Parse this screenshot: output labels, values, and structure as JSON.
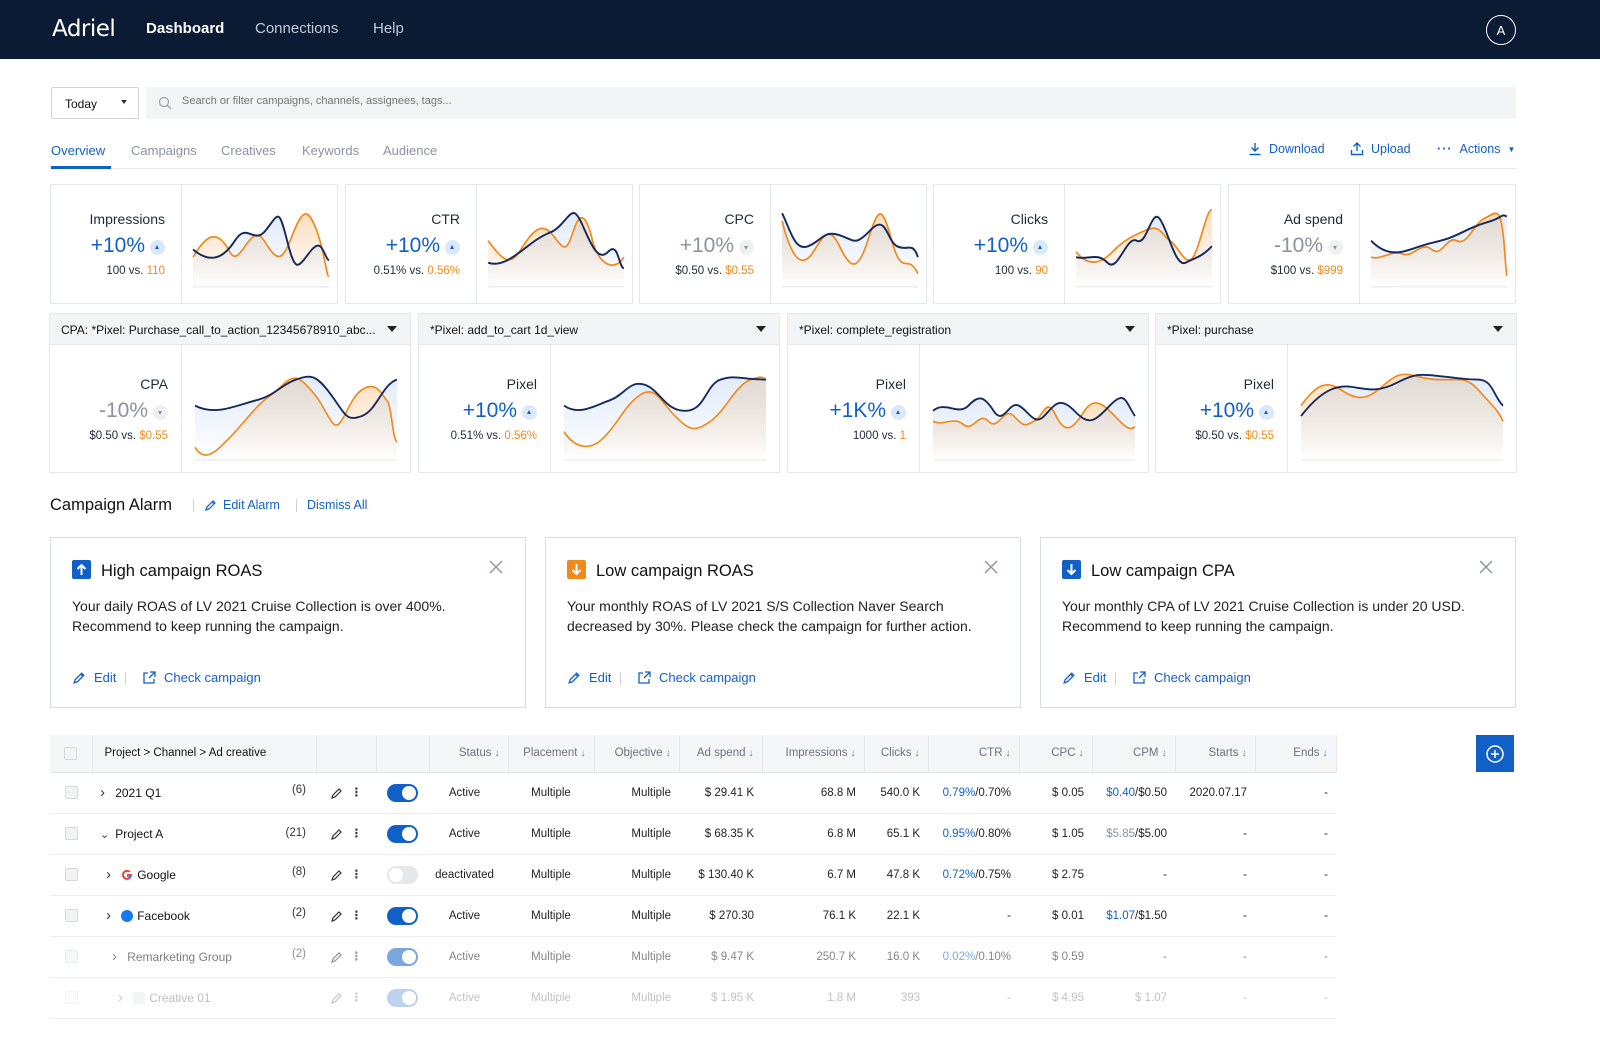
{
  "topbar": {
    "logo": "Adriel",
    "nav": [
      "Dashboard",
      "Connections",
      "Help"
    ],
    "avatar": "A"
  },
  "filter": {
    "date": "Today",
    "search_placeholder": "Search or filter campaigns, channels, assignees, tags..."
  },
  "tabs": [
    "Overview",
    "Campaigns",
    "Creatives",
    "Keywords",
    "Audience"
  ],
  "actions": {
    "download": "Download",
    "upload": "Upload",
    "actions": "Actions"
  },
  "metrics": [
    {
      "name": "Impressions",
      "change": "+10%",
      "dir": "up",
      "current": "100",
      "vs": "vs.",
      "previous": "110"
    },
    {
      "name": "CTR",
      "change": "+10%",
      "dir": "up",
      "current": "0.51%",
      "vs": "vs.",
      "previous": "0.56%"
    },
    {
      "name": "CPC",
      "change": "+10%",
      "dir": "up-grey",
      "current": "$0.50",
      "vs": "vs.",
      "previous": "$0.55"
    },
    {
      "name": "Clicks",
      "change": "+10%",
      "dir": "up",
      "current": "100",
      "vs": "vs.",
      "previous": "90"
    },
    {
      "name": "Ad spend",
      "change": "-10%",
      "dir": "down",
      "current": "$100",
      "vs": "vs.",
      "previous": "$999"
    }
  ],
  "pixels": [
    {
      "header": "CPA: *Pixel: Purchase_call_to_action_12345678910_abc...",
      "name": "CPA",
      "change": "-10%",
      "dir": "down",
      "current": "$0.50",
      "vs": "vs.",
      "previous": "$0.55"
    },
    {
      "header": "*Pixel: add_to_cart 1d_view",
      "name": "Pixel",
      "change": "+10%",
      "dir": "up",
      "current": "0.51%",
      "vs": "vs.",
      "previous": "0.56%"
    },
    {
      "header": "*Pixel: complete_registration",
      "name": "Pixel",
      "change": "+1K%",
      "dir": "up",
      "current": "1000",
      "vs": "vs.",
      "previous": "1"
    },
    {
      "header": "*Pixel: purchase",
      "name": "Pixel",
      "change": "+10%",
      "dir": "up",
      "current": "$0.50",
      "vs": "vs.",
      "previous": "$0.55"
    }
  ],
  "alarm": {
    "title": "Campaign Alarm",
    "edit": "Edit Alarm",
    "dismiss": "Dismiss All",
    "cards": [
      {
        "title": "High campaign ROAS",
        "kind": "up",
        "color": "#1160c8",
        "body": "Your daily ROAS of LV 2021 Cruise Collection is over 400%. Recommend to keep running the campaign.",
        "edit": "Edit",
        "check": "Check campaign"
      },
      {
        "title": "Low campaign ROAS",
        "kind": "down",
        "color": "#f08a1c",
        "body": "Your monthly ROAS of LV 2021 S/S Collection Naver Search decreased by 30%. Please check the campaign for further action.",
        "edit": "Edit",
        "check": "Check campaign"
      },
      {
        "title": "Low campaign CPA",
        "kind": "down",
        "color": "#1160c8",
        "body": "Your monthly CPA of LV 2021 Cruise Collection is under 20 USD. Recommend to keep running the campaign.",
        "edit": "Edit",
        "check": "Check campaign"
      }
    ]
  },
  "table": {
    "headers": [
      "Project > Channel > Ad creative",
      "Status",
      "Placement",
      "Objective",
      "Ad spend",
      "Impressions",
      "Clicks",
      "CTR",
      "CPC",
      "CPM",
      "Starts",
      "Ends"
    ],
    "rows": [
      {
        "name": "2021 Q1",
        "count": "(6)",
        "expand": "›",
        "icon": "",
        "on": true,
        "status": "Active",
        "placement": "Multiple",
        "objective": "Multiple",
        "spend": "$ 29.41 K",
        "impressions": "68.8 M",
        "clicks": "540.0 K",
        "ctr_a": "0.79%",
        "ctr_b": "/0.70%",
        "cpc": "$ 0.05",
        "cpm_a": "$0.40",
        "cpm_b": "/$0.50",
        "starts": "2020.07.17",
        "ends": "-"
      },
      {
        "name": "Project A",
        "count": "(21)",
        "expand": "⌄",
        "icon": "",
        "on": true,
        "status": "Active",
        "placement": "Multiple",
        "objective": "Multiple",
        "spend": "$ 68.35 K",
        "impressions": "6.8 M",
        "clicks": "65.1 K",
        "ctr_a": "0.95%",
        "ctr_b": "/0.80%",
        "cpc": "$ 1.05",
        "cpm_a": "$5.85",
        "cpm_b": "/$5.00",
        "starts": "-",
        "ends": "-"
      },
      {
        "name": "Google",
        "count": "(8)",
        "expand": "›",
        "icon": "google",
        "on": false,
        "status": "deactivated",
        "placement": "Multiple",
        "objective": "Multiple",
        "spend": "$ 130.40 K",
        "impressions": "6.7 M",
        "clicks": "47.8 K",
        "ctr_a": "0.72%",
        "ctr_b": "/0.75%",
        "cpc": "$ 2.75",
        "cpm_a": "-",
        "cpm_b": "",
        "starts": "-",
        "ends": "-"
      },
      {
        "name": "Facebook",
        "count": "(2)",
        "expand": "›",
        "icon": "facebook",
        "on": true,
        "status": "Active",
        "placement": "Multiple",
        "objective": "Multiple",
        "spend": "$ 270.30",
        "impressions": "76.1 K",
        "clicks": "22.1 K",
        "ctr_a": "-",
        "ctr_b": "",
        "cpc": "$ 0.01",
        "cpm_a": "$1.07",
        "cpm_b": "/$1.50",
        "starts": "-",
        "ends": "-"
      },
      {
        "name": "Remarketing Group",
        "count": "(2)",
        "expand": "›",
        "icon": "",
        "on": true,
        "status": "Active",
        "placement": "Multiple",
        "objective": "Multiple",
        "spend": "$ 9.47 K",
        "impressions": "250.7 K",
        "clicks": "16.0 K",
        "ctr_a": "0.02%",
        "ctr_b": "/0.10%",
        "cpc": "$ 0.59",
        "cpm_a": "-",
        "cpm_b": "",
        "starts": "-",
        "ends": "-"
      },
      {
        "name": "Creative 01",
        "count": "",
        "expand": "›",
        "icon": "square",
        "on": true,
        "status": "Active",
        "placement": "Multiple",
        "objective": "Multiple",
        "spend": "$ 1.95 K",
        "impressions": "1.8 M",
        "clicks": "393",
        "ctr_a": "-",
        "ctr_b": "",
        "cpc": "$ 4.95",
        "cpm_a": "$ 1.07",
        "cpm_b": "",
        "starts": "-",
        "ends": "-"
      }
    ]
  },
  "colors": {
    "nav_bg": "#0b1b33",
    "accent": "#1160c8",
    "compare": "#f08a1c"
  }
}
